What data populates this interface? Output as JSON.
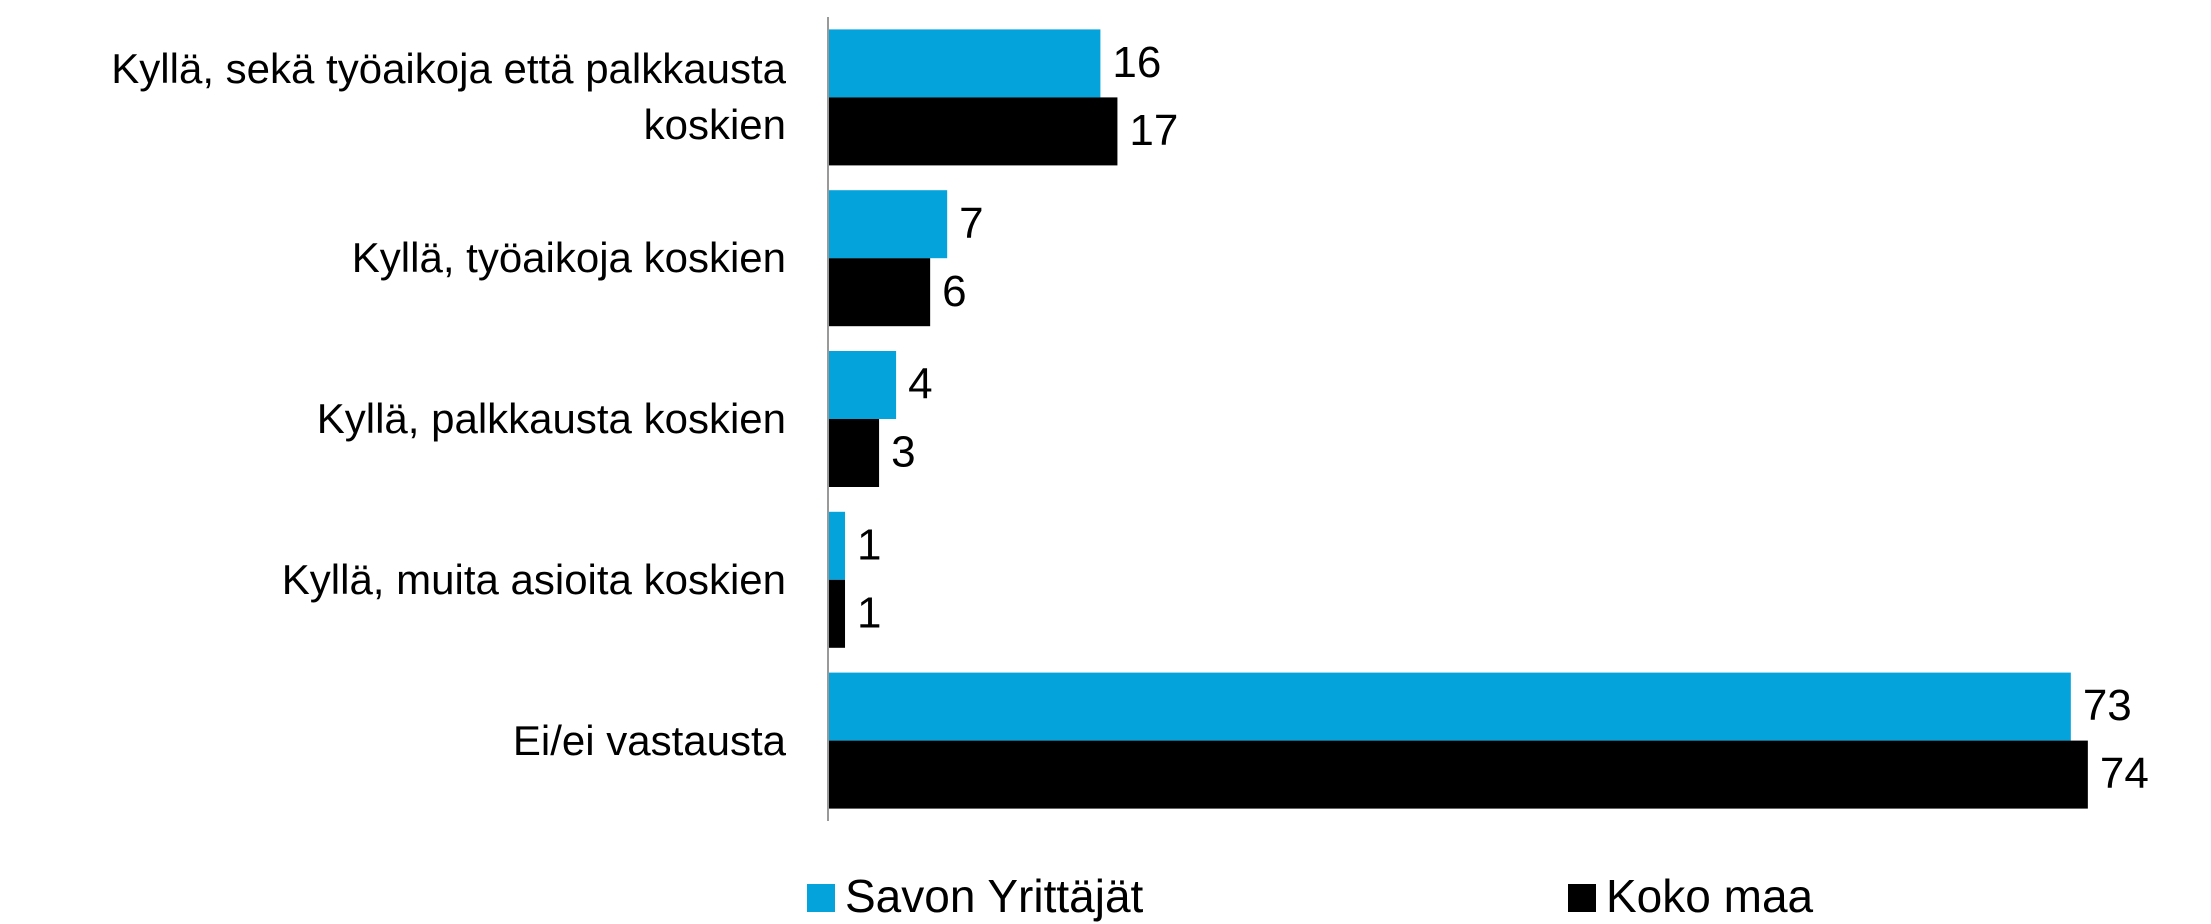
{
  "chart_data": {
    "type": "bar",
    "orientation": "horizontal",
    "categories": [
      "Kyllä, sekä työaikoja että palkkausta koskien",
      "Kyllä, työaikoja koskien",
      "Kyllä, palkkausta koskien",
      "Kyllä, muita asioita koskien",
      "Ei/ei vastausta"
    ],
    "series": [
      {
        "name": "Savon Yrittäjät",
        "color": "#05a3db",
        "values": [
          16,
          7,
          4,
          1,
          73
        ]
      },
      {
        "name": "Koko maa",
        "color": "#000000",
        "values": [
          17,
          6,
          3,
          1,
          74
        ]
      }
    ],
    "xlim": [
      0,
      80
    ],
    "legend": "bottom"
  }
}
